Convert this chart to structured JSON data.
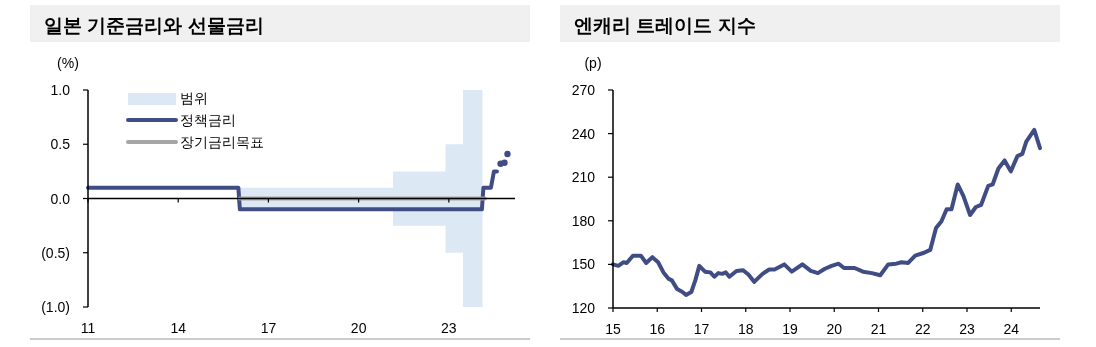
{
  "chart_data": [
    {
      "type": "line",
      "title": "일본 기준금리와 선물금리",
      "ylabel": "(%)",
      "xlim": [
        11,
        25.2
      ],
      "ylim": [
        -1,
        1
      ],
      "xticks": [
        11,
        14,
        17,
        20,
        23
      ],
      "yticks": [
        {
          "value": 1,
          "label": "1.0"
        },
        {
          "value": 0.5,
          "label": "0.5"
        },
        {
          "value": 0,
          "label": "0.0"
        },
        {
          "value": -0.5,
          "label": "(0.5)"
        },
        {
          "value": -1,
          "label": "(1.0)"
        }
      ],
      "legend": "top left",
      "series": [
        {
          "name": "범위",
          "type": "area",
          "color": "#dde8f5",
          "x": [
            16.0,
            21.14,
            21.14,
            22.89,
            22.89,
            23.47,
            23.47,
            24.12
          ],
          "values": [
            0.1,
            0.1,
            0.25,
            0.25,
            0.5,
            0.5,
            1.0,
            1.0
          ]
        },
        {
          "type": "area",
          "color": "#dde8f5",
          "x": [
            16.0,
            21.14,
            21.14,
            22.89,
            22.89,
            23.47,
            23.47,
            24.12
          ],
          "values": [
            -0.1,
            -0.1,
            -0.25,
            -0.25,
            -0.5,
            -0.5,
            -1.0,
            -1.0
          ]
        },
        {
          "name": "정책금리",
          "color": "#404d85",
          "x": [
            11,
            16.0,
            16.05,
            24.1,
            24.15,
            24.4,
            24.5,
            24.6
          ],
          "values": [
            0.1,
            0.1,
            -0.1,
            -0.1,
            0.1,
            0.1,
            0.25,
            0.25
          ]
        },
        {
          "name": "장기금리목표",
          "color": "#a6a6a6",
          "x": [
            16.05,
            24.2
          ],
          "values": [
            0,
            0
          ]
        },
        {
          "type": "scatter",
          "color": "#404d85",
          "marker": "circle",
          "x": [
            24.72,
            24.85,
            24.95
          ],
          "values": [
            0.32,
            0.33,
            0.41
          ]
        }
      ]
    },
    {
      "type": "line",
      "title": "엔캐리 트레이드 지수",
      "ylabel": "(p)",
      "xlim": [
        15,
        24.65
      ],
      "ylim": [
        120,
        270
      ],
      "xticks": [
        15,
        16,
        17,
        18,
        19,
        20,
        21,
        22,
        23,
        24
      ],
      "yticks": [
        120,
        150,
        180,
        210,
        240,
        270
      ],
      "legend": false,
      "series": [
        {
          "color": "#404d85",
          "x": [
            15.0,
            15.12,
            15.24,
            15.31,
            15.45,
            15.63,
            15.75,
            15.89,
            16.02,
            16.14,
            16.26,
            16.33,
            16.45,
            16.57,
            16.65,
            16.77,
            16.86,
            16.95,
            17.08,
            17.2,
            17.29,
            17.38,
            17.47,
            17.55,
            17.63,
            17.79,
            17.94,
            18.06,
            18.19,
            18.38,
            18.53,
            18.65,
            18.87,
            19.04,
            19.28,
            19.47,
            19.63,
            19.79,
            19.94,
            20.1,
            20.22,
            20.46,
            20.65,
            20.85,
            21.04,
            21.22,
            21.4,
            21.52,
            21.67,
            21.83,
            22.03,
            22.17,
            22.3,
            22.42,
            22.54,
            22.65,
            22.79,
            22.92,
            23.07,
            23.2,
            23.32,
            23.48,
            23.58,
            23.71,
            23.85,
            23.99,
            24.14,
            24.25,
            24.34,
            24.52,
            24.65
          ],
          "values": [
            150,
            149,
            151.5,
            151,
            156,
            156,
            151,
            155,
            151.5,
            144.5,
            140,
            139,
            133,
            131,
            129,
            131,
            139,
            149,
            145,
            144.5,
            141.5,
            144,
            143.5,
            144.5,
            141.5,
            145.5,
            146,
            143,
            138,
            143.5,
            146.5,
            146.5,
            150,
            145,
            150,
            145.5,
            144,
            147,
            149,
            150.5,
            147.5,
            147.5,
            145,
            144,
            142.5,
            150,
            150.5,
            151.5,
            151,
            156,
            158,
            160,
            175,
            179.5,
            188,
            188,
            205,
            197,
            184,
            189.5,
            191,
            204,
            205,
            216,
            221.5,
            214,
            224.5,
            226,
            234.5,
            242.5,
            230
          ]
        }
      ]
    }
  ]
}
